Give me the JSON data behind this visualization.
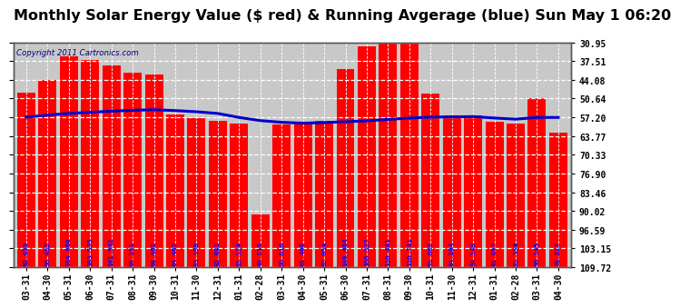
{
  "title": "Monthly Solar Energy Value ($ red) & Running Avgerage (blue) Sun May 1 06:20",
  "copyright": "Copyright 2011 Cartronics.com",
  "categories": [
    "03-31",
    "04-30",
    "05-31",
    "06-30",
    "07-31",
    "08-31",
    "09-30",
    "10-31",
    "11-30",
    "12-31",
    "01-31",
    "02-28",
    "03-31",
    "04-30",
    "05-31",
    "06-30",
    "07-31",
    "08-31",
    "09-30",
    "10-31",
    "11-30",
    "12-31",
    "01-31",
    "02-28",
    "03-31",
    "04-30"
  ],
  "bar_values": [
    92.035,
    96.482,
    104.86,
    103.575,
    101.542,
    99.191,
    98.461,
    84.462,
    83.198,
    82.081,
    81.124,
    49.515,
    80.816,
    81.408,
    82.054,
    100.464,
    108.327,
    110.441,
    110.741,
    91.682,
    84.104,
    84.148,
    81.897,
    81.354,
    90.145,
    78.227
  ],
  "running_avg": [
    83.5,
    84.2,
    84.8,
    85.2,
    85.6,
    85.9,
    86.1,
    85.8,
    85.4,
    84.8,
    83.4,
    82.3,
    81.7,
    81.4,
    81.6,
    81.9,
    82.2,
    82.7,
    83.2,
    83.5,
    83.6,
    83.7,
    83.2,
    82.8,
    83.4,
    83.4
  ],
  "bar_color": "#ff0000",
  "line_color": "#0000cc",
  "plot_bg_color": "#c8c8c8",
  "fig_bg_color": "#ffffff",
  "grid_color": "#ffffff",
  "yticks": [
    30.95,
    37.51,
    44.08,
    50.64,
    57.2,
    63.77,
    70.33,
    76.9,
    83.46,
    90.02,
    96.59,
    103.15,
    109.72
  ],
  "ylabel_right": [
    "109.72",
    "103.15",
    "96.59",
    "90.02",
    "83.46",
    "76.90",
    "70.33",
    "63.77",
    "57.20",
    "50.64",
    "44.08",
    "37.51",
    "30.95"
  ],
  "ymin": 30.95,
  "ymax": 109.72,
  "title_fontsize": 11.5,
  "tick_fontsize": 7,
  "bar_label_fontsize": 5.3,
  "bar_bottom": 30.95
}
